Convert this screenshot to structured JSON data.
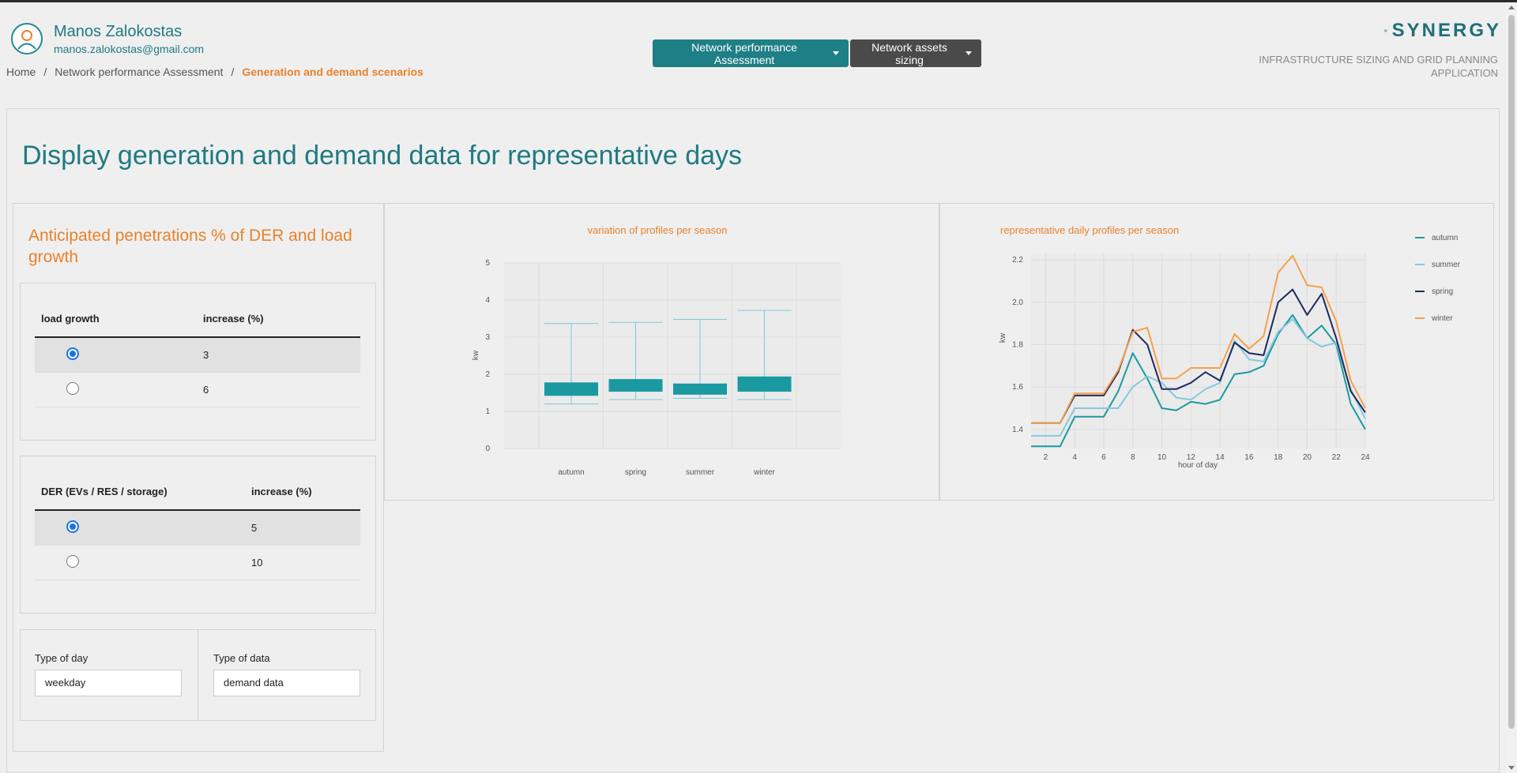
{
  "user": {
    "name": "Manos Zalokostas",
    "email": "manos.zalokostas@gmail.com"
  },
  "breadcrumb": {
    "items": [
      "Home",
      "Network performance Assessment"
    ],
    "separator": "/",
    "current": "Generation and demand scenarios"
  },
  "nav": {
    "primary_label": "Network performance Assessment",
    "secondary_label": "Network assets sizing"
  },
  "brand": {
    "logo_text": "SYNERGY",
    "subtitle": "INFRASTRUCTURE SIZING AND GRID PLANNING APPLICATION"
  },
  "page": {
    "title": "Display generation and demand data for representative days"
  },
  "left_panel": {
    "title": "Anticipated penetrations % of DER and load growth",
    "load_table": {
      "col1": "load growth",
      "col2": "increase (%)",
      "rows": [
        {
          "value": "3",
          "selected": true
        },
        {
          "value": "6",
          "selected": false
        }
      ]
    },
    "der_table": {
      "col1": "DER (EVs / RES / storage)",
      "col2": "increase (%)",
      "rows": [
        {
          "value": "5",
          "selected": true
        },
        {
          "value": "10",
          "selected": false
        }
      ]
    },
    "day_type": {
      "label": "Type of day",
      "value": "weekday"
    },
    "data_type": {
      "label": "Type of data",
      "value": "demand data"
    }
  },
  "colors": {
    "accent": "#1f7a82",
    "orange": "#e8822c",
    "box": "#1a9aa0",
    "whisker": "#7fc8dc",
    "autumn": "#1a9aa0",
    "summer": "#86c9de",
    "spring": "#1e2a5e",
    "winter": "#f5a04a"
  },
  "chart_data": [
    {
      "type": "box",
      "title": "variation of profiles per season",
      "ylabel": "kw",
      "ylim": [
        0,
        5
      ],
      "yticks": [
        0,
        1,
        2,
        3,
        4,
        5
      ],
      "categories": [
        "autumn",
        "spring",
        "summer",
        "winter"
      ],
      "boxes": [
        {
          "min": 1.2,
          "q1": 1.42,
          "q3": 1.78,
          "max": 3.37
        },
        {
          "min": 1.32,
          "q1": 1.53,
          "q3": 1.87,
          "max": 3.4
        },
        {
          "min": 1.35,
          "q1": 1.45,
          "q3": 1.75,
          "max": 3.48
        },
        {
          "min": 1.32,
          "q1": 1.53,
          "q3": 1.94,
          "max": 3.72
        }
      ]
    },
    {
      "type": "line",
      "title": "representative daily profiles per season",
      "xlabel": "hour of day",
      "ylabel": "kw",
      "xlim": [
        1,
        24
      ],
      "ylim": [
        1.31,
        2.23
      ],
      "xticks": [
        2,
        4,
        6,
        8,
        10,
        12,
        14,
        16,
        18,
        20,
        22,
        24
      ],
      "yticks": [
        1.4,
        1.6,
        1.8,
        2.0,
        2.2
      ],
      "yticklabels": [
        "1.4",
        "1.6",
        "1.8",
        "2.0",
        "2.2"
      ],
      "x": [
        1,
        2,
        3,
        4,
        5,
        6,
        7,
        8,
        9,
        10,
        11,
        12,
        13,
        14,
        15,
        16,
        17,
        18,
        19,
        20,
        21,
        22,
        23,
        24
      ],
      "legend": "right",
      "series": [
        {
          "name": "autumn",
          "values": [
            1.32,
            1.32,
            1.32,
            1.46,
            1.46,
            1.46,
            1.58,
            1.76,
            1.64,
            1.5,
            1.49,
            1.53,
            1.52,
            1.54,
            1.66,
            1.67,
            1.7,
            1.85,
            1.94,
            1.83,
            1.89,
            1.8,
            1.52,
            1.4
          ]
        },
        {
          "name": "summer",
          "values": [
            1.37,
            1.37,
            1.37,
            1.5,
            1.5,
            1.5,
            1.5,
            1.6,
            1.65,
            1.62,
            1.55,
            1.54,
            1.59,
            1.62,
            1.82,
            1.73,
            1.72,
            1.86,
            1.92,
            1.83,
            1.79,
            1.81,
            1.59,
            1.45
          ]
        },
        {
          "name": "spring",
          "values": [
            1.43,
            1.43,
            1.43,
            1.56,
            1.56,
            1.56,
            1.67,
            1.87,
            1.8,
            1.59,
            1.59,
            1.62,
            1.67,
            1.63,
            1.81,
            1.76,
            1.75,
            2.0,
            2.06,
            1.94,
            2.04,
            1.83,
            1.58,
            1.48
          ]
        },
        {
          "name": "winter",
          "values": [
            1.43,
            1.43,
            1.43,
            1.57,
            1.57,
            1.57,
            1.68,
            1.86,
            1.88,
            1.64,
            1.64,
            1.69,
            1.69,
            1.69,
            1.85,
            1.78,
            1.84,
            2.14,
            2.22,
            2.08,
            2.07,
            1.91,
            1.63,
            1.5
          ]
        }
      ]
    }
  ]
}
